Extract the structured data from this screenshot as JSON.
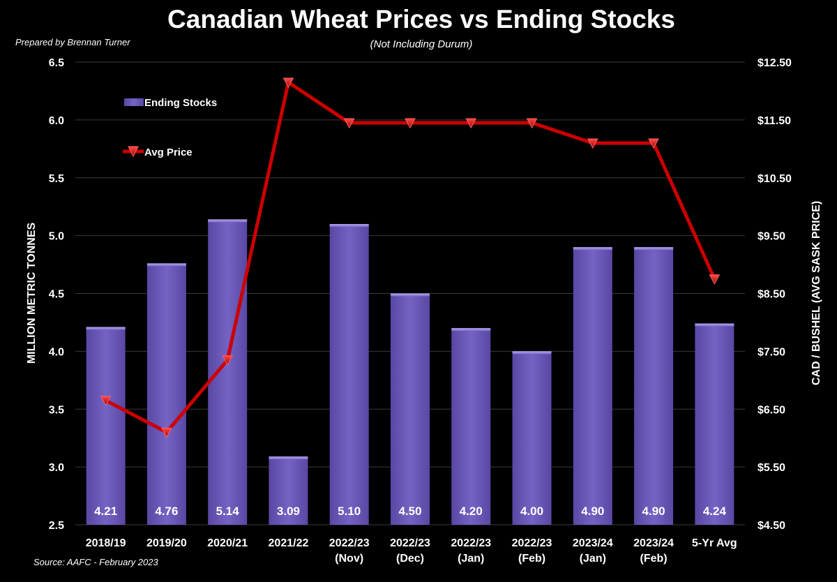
{
  "page": {
    "credit": "Prepared by Brennan Turner",
    "source": "Source: AAFC - February 2023"
  },
  "chart_data": {
    "type": "bar",
    "title": "Canadian Wheat Prices vs Ending Stocks",
    "subtitle": "(Not Including Durum)",
    "categories": [
      [
        "2018/19"
      ],
      [
        "2019/20"
      ],
      [
        "2020/21"
      ],
      [
        "2021/22"
      ],
      [
        "2022/23",
        "(Nov)"
      ],
      [
        "2022/23",
        "(Dec)"
      ],
      [
        "2022/23",
        "(Jan)"
      ],
      [
        "2022/23",
        "(Feb)"
      ],
      [
        "2023/24",
        "(Jan)"
      ],
      [
        "2023/24",
        "(Feb)"
      ],
      [
        "5-Yr Avg"
      ]
    ],
    "series": [
      {
        "name": "Ending Stocks",
        "type": "bar",
        "axis": "left",
        "color": "#6a55b5",
        "values": [
          4.21,
          4.76,
          5.14,
          3.09,
          5.1,
          4.5,
          4.2,
          4.0,
          4.9,
          4.9,
          4.24
        ],
        "labels": [
          "4.21",
          "4.76",
          "5.14",
          "3.09",
          "5.10",
          "4.50",
          "4.20",
          "4.00",
          "4.90",
          "4.90",
          "4.24"
        ]
      },
      {
        "name": "Avg Price",
        "type": "line",
        "axis": "right",
        "color": "#cc0000",
        "values": [
          6.65,
          6.1,
          7.35,
          12.15,
          11.45,
          11.45,
          11.45,
          11.45,
          11.1,
          11.1,
          8.75
        ]
      }
    ],
    "y_left": {
      "label": "MILLION METRIC TONNES",
      "range": [
        2.5,
        6.5
      ],
      "ticks": [
        "2.5",
        "3.0",
        "3.5",
        "4.0",
        "4.5",
        "5.0",
        "5.5",
        "6.0",
        "6.5"
      ],
      "tick_values": [
        2.5,
        3.0,
        3.5,
        4.0,
        4.5,
        5.0,
        5.5,
        6.0,
        6.5
      ]
    },
    "y_right": {
      "label": "CAD / BUSHEL (AVG SASK PRICE)",
      "range": [
        4.5,
        12.5
      ],
      "ticks": [
        "$4.50",
        "$5.50",
        "$6.50",
        "$7.50",
        "$8.50",
        "$9.50",
        "$10.50",
        "$11.50",
        "$12.50"
      ],
      "tick_values": [
        4.5,
        5.5,
        6.5,
        7.5,
        8.5,
        9.5,
        10.5,
        11.5,
        12.5
      ]
    },
    "grid": true,
    "grid_color": "#3a3a3a",
    "legend_position": "top-left"
  }
}
